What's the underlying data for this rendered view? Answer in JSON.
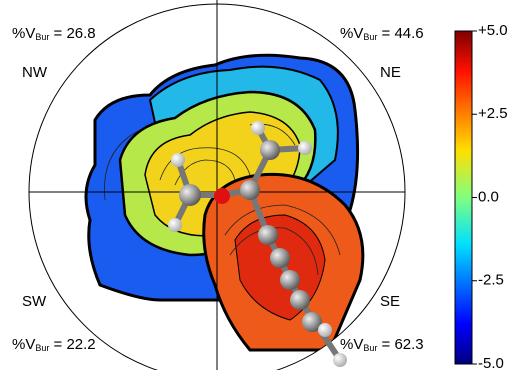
{
  "quadrants": [
    {
      "name": "NW",
      "label_main": "%V",
      "label_sub": "Bur",
      "label_rest": " = 26.8"
    },
    {
      "name": "NE",
      "label_main": "%V",
      "label_sub": "Bur",
      "label_rest": " = 44.6"
    },
    {
      "name": "SW",
      "label_main": "%V",
      "label_sub": "Bur",
      "label_rest": " = 22.2"
    },
    {
      "name": "SE",
      "label_main": "%V",
      "label_sub": "Bur",
      "label_rest": " = 62.3"
    }
  ],
  "colorbar": {
    "range": [
      -5,
      5
    ],
    "ticks": [
      {
        "value": 5,
        "label": "+5.0"
      },
      {
        "value": 2.5,
        "label": "+2.5"
      },
      {
        "value": 0,
        "label": "0.0"
      },
      {
        "value": -2.5,
        "label": "-2.5"
      },
      {
        "value": -5,
        "label": "-5.0"
      }
    ]
  }
}
